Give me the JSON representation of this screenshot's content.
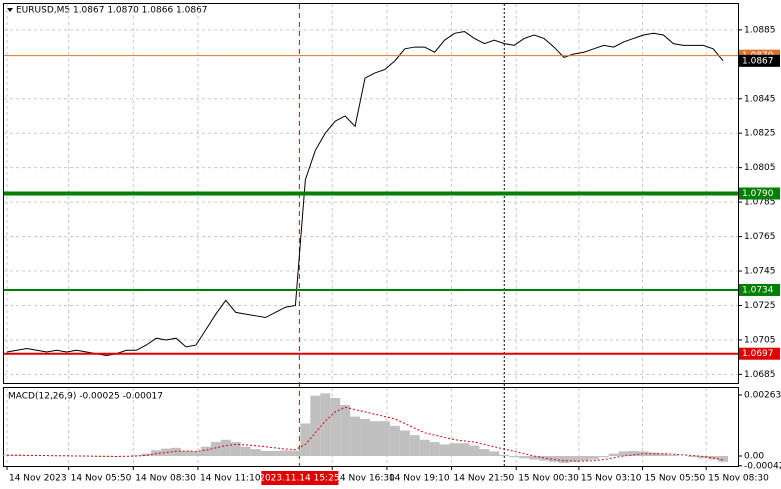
{
  "chart_data": [
    {
      "type": "line",
      "title": "EURUSD,M5  1.0867 1.0870 1.0866 1.0867",
      "color": "#000000",
      "values": [
        1.0698,
        1.0699,
        1.07,
        1.0699,
        1.0698,
        1.0699,
        1.0698,
        1.0699,
        1.0698,
        1.0697,
        1.0696,
        1.0697,
        1.0699,
        1.0699,
        1.0702,
        1.0706,
        1.0705,
        1.0706,
        1.0701,
        1.0702,
        1.0711,
        1.072,
        1.0728,
        1.0721,
        1.072,
        1.0719,
        1.0718,
        1.0721,
        1.0724,
        1.0725,
        1.0798,
        1.0815,
        1.0825,
        1.0832,
        1.0835,
        1.0829,
        1.0857,
        1.086,
        1.0862,
        1.0867,
        1.0874,
        1.0875,
        1.0875,
        1.0872,
        1.0879,
        1.0883,
        1.0884,
        1.088,
        1.0877,
        1.0879,
        1.0877,
        1.0876,
        1.088,
        1.0882,
        1.088,
        1.0875,
        1.0869,
        1.0871,
        1.0872,
        1.0874,
        1.0876,
        1.0875,
        1.0878,
        1.088,
        1.0882,
        1.0883,
        1.0882,
        1.0877,
        1.0876,
        1.0876,
        1.0876,
        1.0874,
        1.0867
      ],
      "ylim": [
        1.068,
        1.09
      ],
      "yticks": [
        1.0885,
        1.0845,
        1.0825,
        1.0805,
        1.0785,
        1.0765,
        1.0745,
        1.0725,
        1.0705,
        1.0685
      ],
      "grid": true,
      "levels": [
        {
          "value": 1.087,
          "label": "1.0870",
          "color": "#e07030",
          "width": 1
        },
        {
          "value": 1.079,
          "label": "1.0790",
          "color": "#008000",
          "width": 4
        },
        {
          "value": 1.0734,
          "label": "1.0734",
          "color": "#008000",
          "width": 2
        },
        {
          "value": 1.0697,
          "label": "1.0697",
          "color": "#e00000",
          "width": 2
        }
      ],
      "last": 1.0867,
      "marker": {
        "value": 29.4,
        "label": "2023.11.14 15:25",
        "color": "#e00000"
      },
      "separator": 50,
      "xlim": [
        -0.3,
        73.5
      ],
      "xticks": [
        {
          "value": 0,
          "label": "14 Nov 2023"
        },
        {
          "value": 6.2,
          "label": "14 Nov 05:50"
        },
        {
          "value": 12.7,
          "label": "14 Nov 08:30"
        },
        {
          "value": 19.2,
          "label": "14 Nov 11:10"
        },
        {
          "value": 32.7,
          "label": "14 Nov 16:30"
        },
        {
          "value": 38.2,
          "label": "14 Nov 19:10"
        },
        {
          "value": 44.7,
          "label": "14 Nov 21:50"
        },
        {
          "value": 51.2,
          "label": "15 Nov 00:30"
        },
        {
          "value": 57.5,
          "label": "15 Nov 03:10"
        },
        {
          "value": 63.9,
          "label": "15 Nov 05:50"
        },
        {
          "value": 70.3,
          "label": "15 Nov 08:30"
        }
      ]
    },
    {
      "type": "macd",
      "title": "MACD(12,26,9) -0.00025 -0.00017",
      "series": [
        {
          "color": "#c0c0c0",
          "values": [
            3e-05,
            4e-05,
            2e-05,
            1e-05,
            0,
            1e-05,
            0,
            0,
            -1e-05,
            -2e-05,
            -3e-05,
            -2e-05,
            0,
            3e-05,
            0.0001,
            0.00025,
            0.00032,
            0.00035,
            0.00022,
            0.0002,
            0.0004,
            0.0006,
            0.0007,
            0.0006,
            0.0004,
            0.0003,
            0.00022,
            0.00022,
            0.00024,
            0.00024,
            0.0014,
            0.0026,
            0.0027,
            0.0025,
            0.0022,
            0.0017,
            0.0016,
            0.0015,
            0.0015,
            0.0013,
            0.0011,
            0.0009,
            0.0007,
            0.0006,
            0.0005,
            0.00055,
            0.00055,
            0.00045,
            0.0003,
            0.0002,
            5e-05,
            -5e-05,
            -0.0001,
            -0.00015,
            -0.0002,
            -0.00025,
            -0.0003,
            -0.00025,
            -0.0002,
            -0.00015,
            -5e-05,
            0.0001,
            0.0002,
            0.00022,
            0.0002,
            0.00015,
            0.0001,
            5e-05,
            0,
            -5e-05,
            -0.0001,
            -0.00015,
            -0.00025
          ]
        },
        {
          "color": "#e00000",
          "values": [
            4e-05,
            4e-05,
            3e-05,
            3e-05,
            2e-05,
            1e-05,
            1e-05,
            0,
            0,
            -1e-05,
            -1e-05,
            -2e-05,
            -1e-05,
            0,
            3e-05,
            0.0001,
            0.00015,
            0.0002,
            0.00022,
            0.0002,
            0.00025,
            0.00035,
            0.00045,
            0.0005,
            0.00048,
            0.00045,
            0.0004,
            0.00035,
            0.0003,
            0.00028,
            0.0005,
            0.001,
            0.0015,
            0.0019,
            0.0021,
            0.002,
            0.0019,
            0.0018,
            0.0017,
            0.0016,
            0.0014,
            0.0012,
            0.001,
            0.0009,
            0.0008,
            0.0007,
            0.00065,
            0.0006,
            0.0005,
            0.0004,
            0.0003,
            0.0002,
            0.0001,
            0,
            -8e-05,
            -0.00015,
            -0.0002,
            -0.00022,
            -0.00022,
            -0.0002,
            -0.00015,
            -8e-05,
            0,
            5e-05,
            0.0001,
            0.0001,
            0.0001,
            8e-05,
            5e-05,
            2e-05,
            -2e-05,
            -8e-05,
            -0.00017
          ]
        }
      ],
      "ylim": [
        -0.00043,
        0.00293
      ],
      "yticks": [
        0.00263,
        {
          "value": 0,
          "label": "0.00"
        },
        -0.00042
      ]
    }
  ]
}
